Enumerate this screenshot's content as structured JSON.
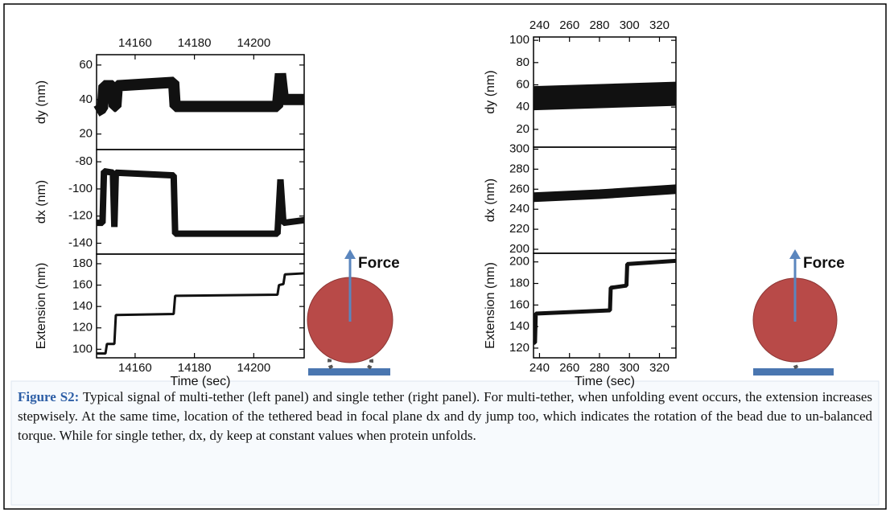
{
  "chart_data": [
    {
      "type": "line",
      "ylabel": "dy (nm)",
      "xaxis": "top",
      "x": [
        14147,
        14149,
        14149.5,
        14152.5,
        14153,
        14153.5,
        14154,
        14173,
        14173.5,
        14208,
        14209,
        14210,
        14217
      ],
      "series": [
        {
          "color": "#111111",
          "values": [
            33,
            35,
            48,
            48,
            36,
            36,
            48,
            50,
            36,
            36,
            55,
            40,
            40
          ]
        }
      ],
      "xlim": [
        14147,
        14217
      ],
      "xticks": [
        14160,
        14180,
        14200
      ],
      "ylim": [
        11,
        66
      ],
      "yticks": [
        20,
        40,
        60
      ]
    },
    {
      "type": "line",
      "ylabel": "dx (nm)",
      "x": [
        14147,
        14149,
        14149.5,
        14152.5,
        14153,
        14153.5,
        14173,
        14173.5,
        14208,
        14209,
        14210,
        14217
      ],
      "series": [
        {
          "color": "#111111",
          "values": [
            -125,
            -125,
            -87,
            -88,
            -128,
            -88,
            -90,
            -133,
            -133,
            -93,
            -125,
            -123
          ]
        }
      ],
      "xlim": [
        14147,
        14217
      ],
      "ylim": [
        -148,
        -71
      ],
      "yticks": [
        -140,
        -120,
        -100,
        -80
      ]
    },
    {
      "type": "line",
      "ylabel": "Extension (nm)",
      "xlabel": "Time (sec)",
      "xaxis": "bottom",
      "x": [
        14147,
        14150,
        14150.5,
        14153,
        14153.5,
        14173,
        14173.5,
        14208,
        14208.5,
        14210,
        14210.5,
        14217
      ],
      "series": [
        {
          "color": "#111111",
          "values": [
            96,
            96,
            105,
            105,
            132,
            133,
            150,
            151,
            160,
            161,
            170,
            171
          ]
        }
      ],
      "xlim": [
        14147,
        14217
      ],
      "xticks": [
        14160,
        14180,
        14200
      ],
      "ylim": [
        92,
        189
      ],
      "yticks": [
        100,
        120,
        140,
        160,
        180
      ]
    },
    {
      "type": "line",
      "ylabel": "dy (nm)",
      "xaxis": "top",
      "x": [
        236,
        331
      ],
      "series": [
        {
          "color": "#111111",
          "values": [
            48,
            52
          ]
        }
      ],
      "xlim": [
        236,
        331
      ],
      "xticks": [
        240,
        260,
        280,
        300,
        320
      ],
      "ylim": [
        4,
        103
      ],
      "yticks": [
        20,
        40,
        60,
        80,
        100
      ]
    },
    {
      "type": "line",
      "ylabel": "dx (nm)",
      "x": [
        236,
        280,
        331
      ],
      "series": [
        {
          "color": "#111111",
          "values": [
            252,
            255,
            260
          ]
        }
      ],
      "xlim": [
        236,
        331
      ],
      "ylim": [
        196,
        302
      ],
      "yticks": [
        200,
        220,
        240,
        260,
        280,
        300
      ]
    },
    {
      "type": "line",
      "ylabel": "Extension (nm)",
      "xlabel": "Time (sec)",
      "xaxis": "bottom",
      "x": [
        236,
        237,
        237.5,
        287,
        287.5,
        298,
        298.5,
        331
      ],
      "series": [
        {
          "color": "#111111",
          "values": [
            125,
            125,
            152,
            155,
            176,
            178,
            198,
            201
          ]
        }
      ],
      "xlim": [
        236,
        331
      ],
      "xticks": [
        240,
        260,
        280,
        300,
        320
      ],
      "ylim": [
        111,
        208
      ],
      "yticks": [
        120,
        140,
        160,
        180,
        200
      ]
    }
  ],
  "diagrams": [
    {
      "label": "Force"
    },
    {
      "label": "Force"
    }
  ],
  "caption": {
    "label": "Figure S2:",
    "text": "Typical signal of multi-tether (left panel) and single tether (right panel). For multi-tether, when unfolding event occurs, the extension increases stepwisely. At the same time, location of the tethered bead in focal plane dx and dy jump too, which indicates the rotation of the bead due to un-balanced torque. While for single tether, dx, dy keep at constant values when protein unfolds."
  }
}
